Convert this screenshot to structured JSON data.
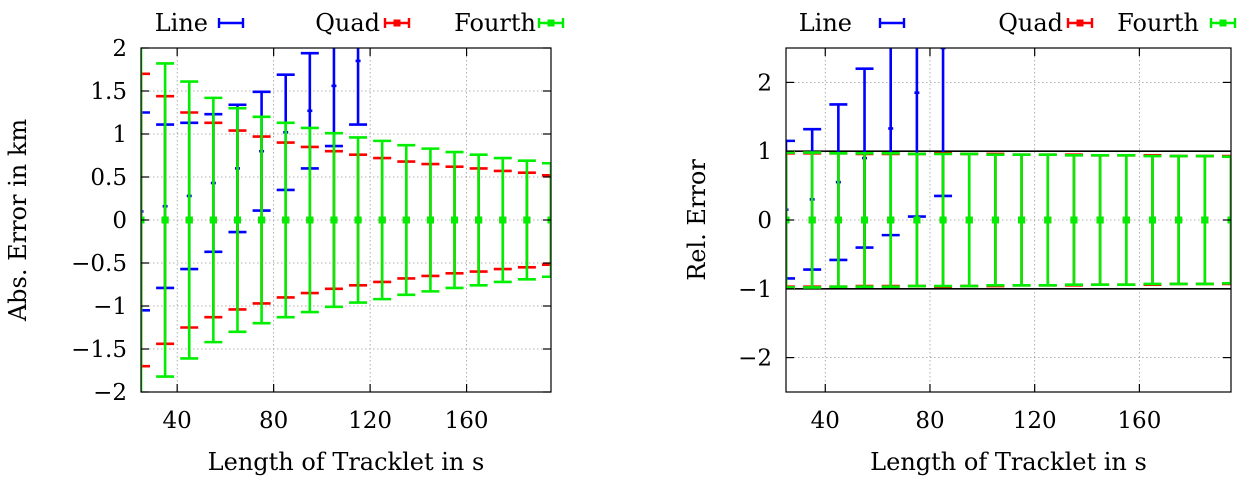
{
  "chart_data": [
    {
      "type": "errorbar",
      "xlabel": "Length of Tracklet in s",
      "ylabel": "Abs. Error in km",
      "xlim": [
        25,
        195
      ],
      "ylim": [
        -2,
        2
      ],
      "xticks": [
        40,
        80,
        120,
        160
      ],
      "yticks": [
        -2,
        -1.5,
        -1,
        -0.5,
        0,
        0.5,
        1,
        1.5,
        2
      ],
      "ytick_labels": [
        "−2",
        "−1.5",
        "−1",
        "−0.5",
        "0",
        "0.5",
        "1",
        "1.5",
        "2"
      ],
      "grid": true,
      "legend": "top, outside plot, horizontal",
      "series": [
        {
          "name": "Line",
          "color": "#0000ff",
          "x": [
            25,
            35,
            45,
            55,
            65,
            75,
            85,
            95,
            105,
            115
          ],
          "y": [
            0.1,
            0.16,
            0.28,
            0.43,
            0.6,
            0.8,
            1.02,
            1.27,
            1.56,
            1.85
          ],
          "err": [
            1.15,
            0.95,
            0.85,
            0.8,
            0.74,
            0.69,
            0.67,
            0.67,
            0.7,
            0.74
          ]
        },
        {
          "name": "Quad",
          "color": "#ff0000",
          "x": [
            25,
            35,
            45,
            55,
            65,
            75,
            85,
            95,
            105,
            115,
            125,
            135,
            145,
            155,
            165,
            175,
            185,
            195
          ],
          "y": [
            0,
            0,
            0,
            0,
            0,
            0,
            0,
            0,
            0,
            0,
            0,
            0,
            0,
            0,
            0,
            0,
            0,
            0
          ],
          "err": [
            1.7,
            1.44,
            1.25,
            1.13,
            1.04,
            0.97,
            0.9,
            0.85,
            0.8,
            0.76,
            0.72,
            0.68,
            0.65,
            0.62,
            0.6,
            0.57,
            0.55,
            0.52
          ]
        },
        {
          "name": "Fourth",
          "color": "#00ee00",
          "x": [
            25,
            35,
            45,
            55,
            65,
            75,
            85,
            95,
            105,
            115,
            125,
            135,
            145,
            155,
            165,
            175,
            185,
            195
          ],
          "y": [
            0,
            0,
            0,
            0,
            0,
            0,
            0,
            0,
            0,
            0,
            0,
            0,
            0,
            0,
            0,
            0,
            0,
            0
          ],
          "err": [
            2.1,
            1.82,
            1.61,
            1.42,
            1.3,
            1.2,
            1.13,
            1.07,
            1.01,
            0.96,
            0.92,
            0.87,
            0.83,
            0.79,
            0.76,
            0.72,
            0.69,
            0.66
          ]
        }
      ]
    },
    {
      "type": "errorbar",
      "xlabel": "Length of Tracklet in s",
      "ylabel": "Rel. Error",
      "xlim": [
        25,
        195
      ],
      "ylim": [
        -2.5,
        2.5
      ],
      "xticks": [
        40,
        80,
        120,
        160
      ],
      "yticks": [
        -2,
        -1,
        0,
        1,
        2
      ],
      "ytick_labels": [
        "−2",
        "−1",
        "0",
        "1",
        "2"
      ],
      "grid": true,
      "legend": "top, outside plot, horizontal",
      "reference_lines": [
        1,
        -1
      ],
      "series": [
        {
          "name": "Line",
          "color": "#0000ff",
          "x": [
            25,
            35,
            45,
            55,
            65,
            75,
            85
          ],
          "y": [
            0.15,
            0.3,
            0.55,
            0.9,
            1.33,
            1.85,
            2.5
          ],
          "err": [
            1.0,
            1.02,
            1.13,
            1.3,
            1.55,
            1.8,
            2.15
          ]
        },
        {
          "name": "Quad",
          "color": "#ff0000",
          "x": [
            25,
            35,
            45,
            55,
            65,
            75,
            85,
            95,
            105,
            115,
            125,
            135,
            145,
            155,
            165,
            175,
            185,
            195
          ],
          "y": [
            0,
            0,
            0,
            0,
            0,
            0,
            0,
            0,
            0,
            0,
            0,
            0,
            0,
            0,
            0,
            0,
            0,
            0
          ],
          "err": [
            0.97,
            0.97,
            0.97,
            0.96,
            0.96,
            0.96,
            0.97,
            0.96,
            0.96,
            0.95,
            0.95,
            0.95,
            0.94,
            0.94,
            0.94,
            0.93,
            0.93,
            0.93
          ]
        },
        {
          "name": "Fourth",
          "color": "#00ee00",
          "x": [
            25,
            35,
            45,
            55,
            65,
            75,
            85,
            95,
            105,
            115,
            125,
            135,
            145,
            155,
            165,
            175,
            185,
            195
          ],
          "y": [
            0,
            0,
            0,
            0,
            0,
            0,
            0,
            0,
            0,
            0,
            0,
            0,
            0,
            0,
            0,
            0,
            0,
            0
          ],
          "err": [
            0.98,
            0.98,
            0.97,
            0.97,
            0.97,
            0.96,
            0.96,
            0.96,
            0.95,
            0.95,
            0.95,
            0.94,
            0.94,
            0.94,
            0.93,
            0.93,
            0.93,
            0.92
          ]
        }
      ]
    }
  ]
}
